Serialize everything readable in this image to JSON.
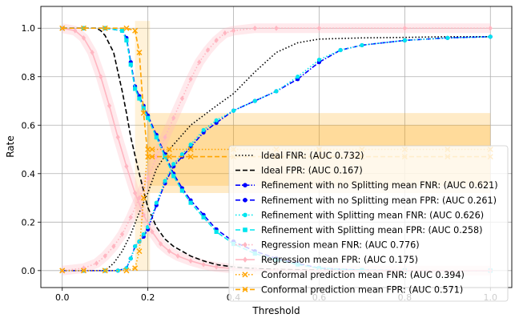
{
  "chart_data": {
    "type": "line",
    "title": "",
    "xlabel": "Threshold",
    "ylabel": "Rate",
    "xlim": [
      -0.05,
      1.05
    ],
    "ylim": [
      -0.07,
      1.09
    ],
    "xticks": [
      "0.0",
      "0.2",
      "0.4",
      "0.6",
      "0.8",
      "1.0"
    ],
    "xtick_values": [
      0.0,
      0.2,
      0.4,
      0.6,
      0.8,
      1.0
    ],
    "yticks": [
      "0.0",
      "0.2",
      "0.4",
      "0.6",
      "0.8",
      "1.0"
    ],
    "ytick_values": [
      0.0,
      0.2,
      0.4,
      0.6,
      0.8,
      1.0
    ],
    "grid": true,
    "legend_position": "lower-right",
    "series": [
      {
        "name": "Ideal FNR: (AUC 0.732)",
        "color": "#000000",
        "linestyle": "dotted",
        "marker": "none",
        "x": [
          0.0,
          0.1,
          0.12,
          0.14,
          0.16,
          0.18,
          0.2,
          0.22,
          0.25,
          0.28,
          0.3,
          0.33,
          0.36,
          0.4,
          0.45,
          0.5,
          0.55,
          0.6,
          0.7,
          0.8,
          0.9,
          1.0
        ],
        "y": [
          0.0,
          0.0,
          0.03,
          0.08,
          0.15,
          0.24,
          0.32,
          0.42,
          0.5,
          0.56,
          0.6,
          0.64,
          0.68,
          0.73,
          0.82,
          0.9,
          0.94,
          0.955,
          0.96,
          0.962,
          0.965,
          0.965
        ]
      },
      {
        "name": "Ideal FPR: (AUC 0.167)",
        "color": "#000000",
        "linestyle": "dashed",
        "marker": "none",
        "x": [
          0.0,
          0.08,
          0.09,
          0.1,
          0.12,
          0.13,
          0.14,
          0.15,
          0.16,
          0.18,
          0.2,
          0.22,
          0.24,
          0.26,
          0.28,
          0.3,
          0.33,
          0.36,
          0.4,
          0.45,
          0.5,
          0.6,
          0.7,
          0.8,
          1.0
        ],
        "y": [
          1.0,
          1.0,
          0.99,
          0.97,
          0.9,
          0.82,
          0.74,
          0.65,
          0.55,
          0.4,
          0.26,
          0.18,
          0.13,
          0.1,
          0.08,
          0.06,
          0.04,
          0.025,
          0.015,
          0.008,
          0.005,
          0.002,
          0.0,
          0.0,
          0.0
        ]
      },
      {
        "name": "Refinement with no Splitting mean FNR: (AUC 0.621)",
        "color": "#0000ff",
        "linestyle": "dashdot",
        "marker": "circle",
        "x": [
          0.0,
          0.05,
          0.1,
          0.13,
          0.15,
          0.16,
          0.17,
          0.18,
          0.19,
          0.2,
          0.22,
          0.24,
          0.26,
          0.28,
          0.3,
          0.33,
          0.36,
          0.4,
          0.45,
          0.5,
          0.55,
          0.6,
          0.65,
          0.7,
          0.8,
          0.9,
          1.0
        ],
        "y": [
          0.0,
          0.0,
          0.0,
          0.0,
          0.01,
          0.05,
          0.1,
          0.12,
          0.14,
          0.17,
          0.27,
          0.36,
          0.43,
          0.47,
          0.51,
          0.57,
          0.61,
          0.66,
          0.7,
          0.74,
          0.79,
          0.86,
          0.91,
          0.93,
          0.95,
          0.96,
          0.965
        ]
      },
      {
        "name": "Refinement with no Splitting mean FPR: (AUC 0.261)",
        "color": "#0000ff",
        "linestyle": "dashed",
        "marker": "circle",
        "x": [
          0.0,
          0.05,
          0.1,
          0.14,
          0.15,
          0.16,
          0.17,
          0.18,
          0.19,
          0.2,
          0.22,
          0.24,
          0.26,
          0.28,
          0.3,
          0.33,
          0.36,
          0.4,
          0.45,
          0.5,
          0.55,
          0.6,
          0.7,
          0.8,
          1.0
        ],
        "y": [
          1.0,
          1.0,
          1.0,
          0.99,
          0.96,
          0.86,
          0.76,
          0.72,
          0.68,
          0.64,
          0.56,
          0.48,
          0.4,
          0.34,
          0.29,
          0.23,
          0.17,
          0.12,
          0.08,
          0.05,
          0.03,
          0.01,
          0.002,
          0.0,
          0.0
        ]
      },
      {
        "name": "Refinement with Splitting mean FNR: (AUC 0.626)",
        "color": "#00e5ee",
        "linestyle": "dotted",
        "marker": "circle",
        "x": [
          0.0,
          0.05,
          0.1,
          0.13,
          0.15,
          0.16,
          0.17,
          0.18,
          0.19,
          0.2,
          0.22,
          0.24,
          0.26,
          0.28,
          0.3,
          0.33,
          0.36,
          0.4,
          0.45,
          0.5,
          0.55,
          0.6,
          0.65,
          0.7,
          0.8,
          0.9,
          1.0
        ],
        "y": [
          0.0,
          0.0,
          0.0,
          0.0,
          0.01,
          0.05,
          0.1,
          0.12,
          0.15,
          0.18,
          0.28,
          0.37,
          0.44,
          0.48,
          0.52,
          0.58,
          0.62,
          0.66,
          0.7,
          0.74,
          0.8,
          0.87,
          0.91,
          0.93,
          0.95,
          0.96,
          0.965
        ]
      },
      {
        "name": "Refinement with Splitting mean FPR: (AUC 0.258)",
        "color": "#00e5ee",
        "linestyle": "dashed",
        "marker": "square",
        "x": [
          0.0,
          0.05,
          0.1,
          0.14,
          0.15,
          0.16,
          0.17,
          0.18,
          0.19,
          0.2,
          0.22,
          0.24,
          0.26,
          0.28,
          0.3,
          0.33,
          0.36,
          0.4,
          0.45,
          0.5,
          0.55,
          0.6,
          0.7,
          0.8,
          1.0
        ],
        "y": [
          1.0,
          1.0,
          1.0,
          0.99,
          0.95,
          0.85,
          0.75,
          0.71,
          0.67,
          0.63,
          0.55,
          0.47,
          0.39,
          0.33,
          0.28,
          0.22,
          0.16,
          0.11,
          0.07,
          0.045,
          0.025,
          0.01,
          0.002,
          0.0,
          0.0
        ]
      },
      {
        "name": "Regression mean FNR: (AUC 0.776)",
        "color": "#ffb6c1",
        "linestyle": "dotted",
        "marker": "diamond",
        "x": [
          0.0,
          0.05,
          0.08,
          0.1,
          0.12,
          0.14,
          0.16,
          0.18,
          0.2,
          0.22,
          0.24,
          0.26,
          0.28,
          0.3,
          0.32,
          0.34,
          0.36,
          0.38,
          0.4,
          0.45,
          0.5,
          0.6,
          0.8,
          1.0
        ],
        "y": [
          0.0,
          0.01,
          0.03,
          0.06,
          0.1,
          0.15,
          0.22,
          0.3,
          0.38,
          0.47,
          0.55,
          0.63,
          0.71,
          0.79,
          0.86,
          0.91,
          0.95,
          0.98,
          0.99,
          1.0,
          1.0,
          1.0,
          1.0,
          1.0
        ]
      },
      {
        "name": "Regression mean FPR: (AUC 0.175)",
        "color": "#ffb6c1",
        "linestyle": "solid",
        "marker": "diamond",
        "x": [
          0.0,
          0.03,
          0.05,
          0.07,
          0.09,
          0.11,
          0.13,
          0.15,
          0.17,
          0.19,
          0.21,
          0.23,
          0.25,
          0.27,
          0.3,
          0.33,
          0.36,
          0.4,
          0.45,
          0.5,
          0.6,
          0.8,
          1.0
        ],
        "y": [
          1.0,
          0.99,
          0.96,
          0.9,
          0.8,
          0.68,
          0.55,
          0.43,
          0.32,
          0.23,
          0.16,
          0.11,
          0.08,
          0.06,
          0.04,
          0.025,
          0.015,
          0.008,
          0.004,
          0.002,
          0.0,
          0.0,
          0.0
        ]
      },
      {
        "name": "Conformal prediction mean FNR: (AUC 0.394)",
        "color": "#ffa500",
        "linestyle": "dotted",
        "marker": "x",
        "x": [
          0.0,
          0.05,
          0.1,
          0.15,
          0.17,
          0.18,
          0.19,
          0.2,
          0.21,
          0.25,
          0.3,
          0.4,
          0.5,
          0.6,
          0.7,
          0.8,
          0.9,
          1.0
        ],
        "y": [
          0.0,
          0.0,
          0.0,
          0.0,
          0.01,
          0.08,
          0.3,
          0.5,
          0.5,
          0.5,
          0.5,
          0.5,
          0.5,
          0.5,
          0.5,
          0.5,
          0.5,
          0.5
        ]
      },
      {
        "name": "Conformal prediction mean FPR: (AUC 0.571)",
        "color": "#ffa500",
        "linestyle": "dashed",
        "marker": "x",
        "x": [
          0.0,
          0.05,
          0.1,
          0.15,
          0.17,
          0.18,
          0.19,
          0.2,
          0.21,
          0.25,
          0.3,
          0.4,
          0.5,
          0.6,
          0.7,
          0.8,
          0.9,
          1.0
        ],
        "y": [
          1.0,
          1.0,
          1.0,
          1.0,
          0.99,
          0.9,
          0.65,
          0.47,
          0.47,
          0.47,
          0.47,
          0.47,
          0.47,
          0.47,
          0.47,
          0.47,
          0.47,
          0.47
        ]
      }
    ],
    "bands": [
      {
        "name": "Conformal prediction mean FNR band",
        "color": "#ffa500",
        "x": [
          0.2,
          1.0
        ],
        "y_low": 0.35,
        "y_high": 0.65
      },
      {
        "name": "Conformal prediction mean FPR band",
        "color": "#ffa500",
        "x": [
          0.2,
          1.0
        ],
        "y_low": 0.32,
        "y_high": 0.6
      }
    ]
  }
}
